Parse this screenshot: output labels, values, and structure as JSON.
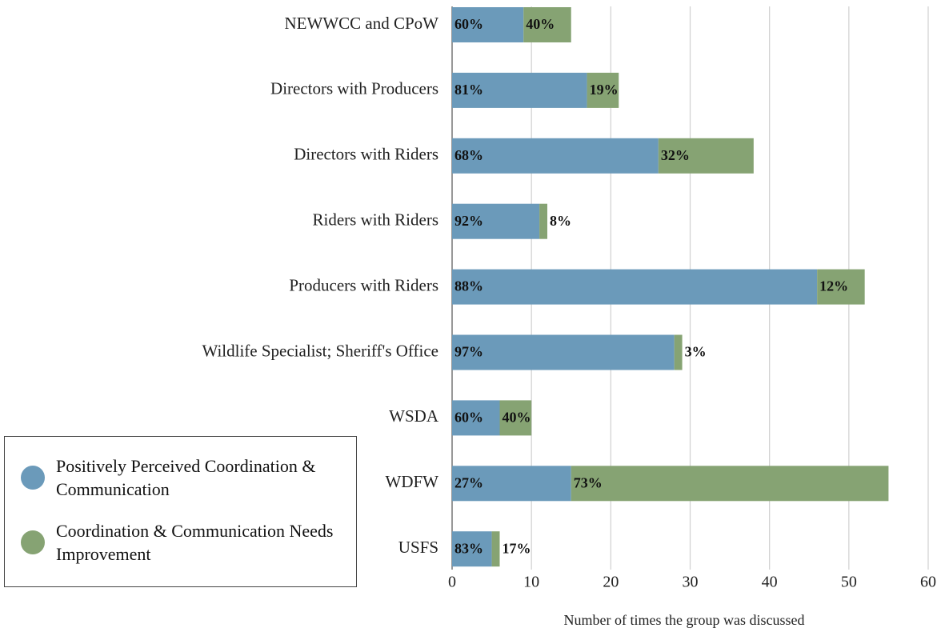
{
  "chart_data": {
    "type": "stacked-barh",
    "x_label": "Number of times the group was discussed",
    "categories": [
      "NEWWCC and CPoW",
      "Directors with Producers",
      "Directors with Riders",
      "Riders with Riders",
      "Producers with Riders",
      "Wildlife Specialist; Sheriff's Office",
      "WSDA",
      "WDFW",
      "USFS"
    ],
    "series": [
      {
        "name": "Positively Perceived Coordination & Communication",
        "color": "#6b9aba",
        "values": [
          9,
          17,
          26,
          11,
          46,
          28,
          6,
          15,
          5
        ],
        "segment_labels": [
          "60%",
          "81%",
          "68%",
          "92%",
          "88%",
          "97%",
          "60%",
          "27%",
          "83%"
        ]
      },
      {
        "name": "Coordination & Communication Needs Improvement",
        "color": "#86a373",
        "values": [
          6,
          4,
          12,
          1,
          6,
          1,
          4,
          40,
          1
        ],
        "segment_labels": [
          "40%",
          "19%",
          "32%",
          "8%",
          "12%",
          "3%",
          "40%",
          "73%",
          "17%"
        ]
      }
    ],
    "xlim": [
      0,
      60
    ],
    "xticks": [
      0,
      10,
      20,
      30,
      40,
      50,
      60
    ],
    "grid": true,
    "legend": "lower-left"
  }
}
